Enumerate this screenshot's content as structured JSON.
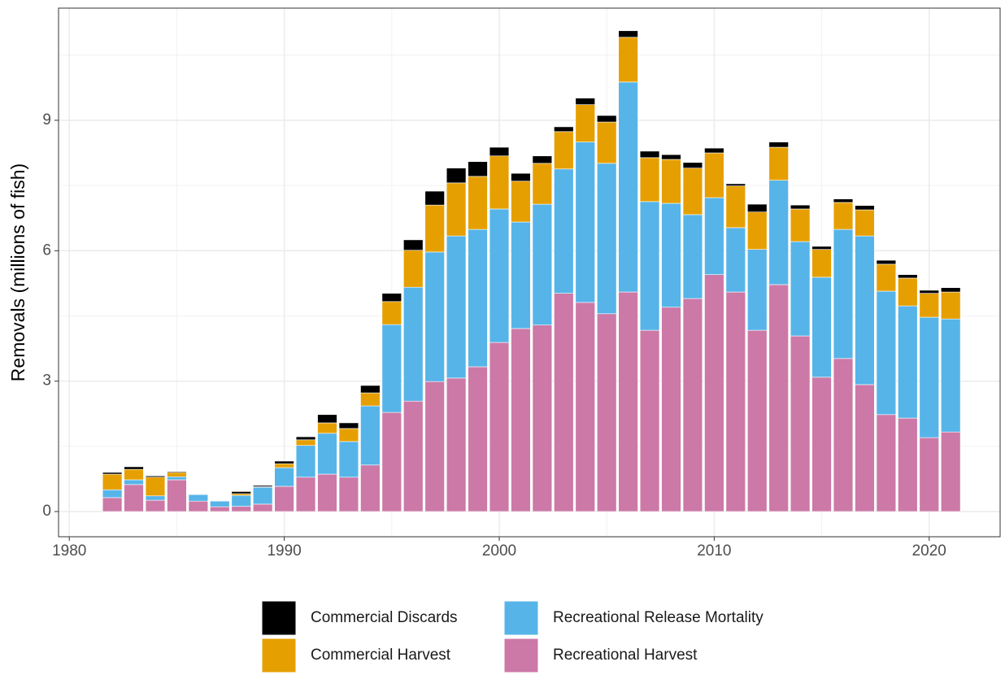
{
  "chart_data": {
    "type": "stacked-bar",
    "y_label": "Removals (millions of fish)",
    "x": [
      1982,
      1983,
      1984,
      1985,
      1986,
      1987,
      1988,
      1989,
      1990,
      1991,
      1992,
      1993,
      1994,
      1995,
      1996,
      1997,
      1998,
      1999,
      2000,
      2001,
      2002,
      2003,
      2004,
      2005,
      2006,
      2007,
      2008,
      2009,
      2010,
      2011,
      2012,
      2013,
      2014,
      2015,
      2016,
      2017,
      2018,
      2019,
      2020,
      2021
    ],
    "series": [
      {
        "name": "Commercial Discards",
        "color": "#000000",
        "values": [
          0.04,
          0.06,
          0.03,
          0.02,
          0.01,
          0.01,
          0.05,
          0.03,
          0.06,
          0.07,
          0.19,
          0.13,
          0.17,
          0.19,
          0.24,
          0.32,
          0.34,
          0.34,
          0.2,
          0.18,
          0.17,
          0.11,
          0.15,
          0.15,
          0.15,
          0.15,
          0.11,
          0.13,
          0.11,
          0.05,
          0.18,
          0.12,
          0.09,
          0.07,
          0.08,
          0.1,
          0.09,
          0.08,
          0.07,
          0.1
        ]
      },
      {
        "name": "Commercial Harvest",
        "color": "#e69f00",
        "values": [
          0.36,
          0.24,
          0.43,
          0.1,
          0.01,
          0.01,
          0.04,
          0.01,
          0.09,
          0.13,
          0.24,
          0.3,
          0.3,
          0.53,
          0.85,
          1.08,
          1.22,
          1.22,
          1.22,
          0.94,
          0.94,
          0.86,
          0.86,
          0.95,
          1.03,
          1.01,
          1.01,
          1.07,
          1.03,
          0.96,
          0.86,
          0.76,
          0.75,
          0.64,
          0.62,
          0.6,
          0.62,
          0.64,
          0.55,
          0.62
        ]
      },
      {
        "name": "Recreational Release Mortality",
        "color": "#56b4e9",
        "values": [
          0.18,
          0.11,
          0.1,
          0.07,
          0.15,
          0.13,
          0.25,
          0.39,
          0.43,
          0.73,
          0.94,
          0.82,
          1.36,
          2.02,
          2.62,
          2.98,
          3.27,
          3.16,
          3.07,
          2.45,
          2.78,
          2.86,
          3.69,
          3.46,
          4.83,
          2.96,
          2.39,
          1.93,
          1.77,
          1.48,
          1.86,
          2.4,
          2.17,
          2.3,
          2.97,
          3.42,
          2.84,
          2.58,
          2.77,
          2.6
        ]
      },
      {
        "name": "Recreational Harvest",
        "color": "#cc79a7",
        "values": [
          0.32,
          0.62,
          0.26,
          0.73,
          0.24,
          0.11,
          0.12,
          0.17,
          0.58,
          0.79,
          0.86,
          0.79,
          1.07,
          2.28,
          2.54,
          2.99,
          3.07,
          3.33,
          3.89,
          4.21,
          4.29,
          5.02,
          4.81,
          4.55,
          5.05,
          4.17,
          4.7,
          4.9,
          5.45,
          5.05,
          4.17,
          5.22,
          4.04,
          3.09,
          3.52,
          2.92,
          2.23,
          2.15,
          1.7,
          1.83
        ]
      }
    ],
    "xlim": [
      1979.5,
      2023.3
    ],
    "xticks": [
      1980,
      1990,
      2000,
      2010,
      2020
    ],
    "ylim": [
      -0.58,
      11.58
    ],
    "yticks": [
      0,
      3,
      6,
      9
    ],
    "grid": true,
    "legend_position": "bottom"
  }
}
